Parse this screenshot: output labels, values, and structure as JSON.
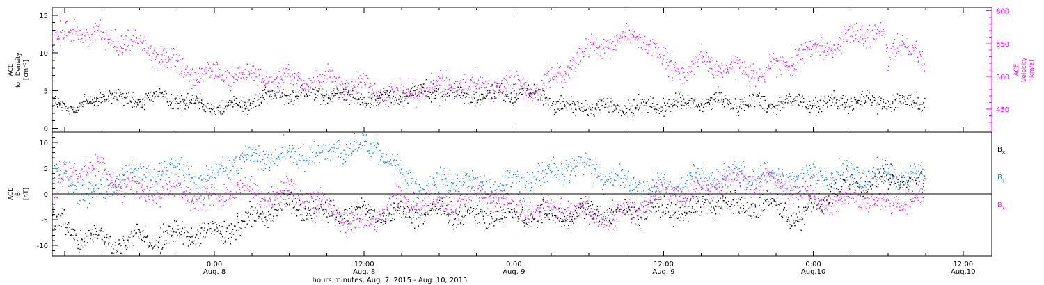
{
  "colors": {
    "black": "#000000",
    "blue": "#1e8ce6",
    "magenta": "#e626e6",
    "axis_magenta": "#ff00ff"
  },
  "xaxis": {
    "label": "hours:minutes, Aug.  7, 2015 - Aug. 10, 2015",
    "ticks": [
      {
        "hour": 24,
        "time": "0:00",
        "date": "Aug. 8"
      },
      {
        "hour": 36,
        "time": "12:00",
        "date": "Aug. 8"
      },
      {
        "hour": 48,
        "time": "0:00",
        "date": "Aug. 9"
      },
      {
        "hour": 60,
        "time": "12:00",
        "date": "Aug. 9"
      },
      {
        "hour": 72,
        "time": "0:00",
        "date": "Aug.10"
      },
      {
        "hour": 84,
        "time": "12:00",
        "date": "Aug.10"
      }
    ],
    "range_hours": [
      11,
      86.3
    ]
  },
  "chart_data": [
    {
      "type": "scatter",
      "ylabel_left": [
        "ACE",
        "Ion Density",
        "[cm⁻³]"
      ],
      "ylabel_right": [
        "ACE",
        "Velocity",
        "[km/s]"
      ],
      "left_ylim": [
        -0.5,
        16
      ],
      "left_ticks": [
        0,
        5,
        10,
        15
      ],
      "right_ylim": [
        415,
        605
      ],
      "right_ticks": [
        450,
        500,
        550,
        600
      ],
      "x_units": "hours since Aug. 7, 2015 00:00",
      "series": [
        {
          "name": "Ion Density",
          "axis": "left",
          "color": "black",
          "points": [
            [
              11,
              3.8
            ],
            [
              13,
              2.5
            ],
            [
              15,
              4.5
            ],
            [
              17,
              3.5
            ],
            [
              19,
              4.2
            ],
            [
              21,
              4.0
            ],
            [
              23,
              3.2
            ],
            [
              25,
              2.8
            ],
            [
              27,
              3.8
            ],
            [
              29,
              4.5
            ],
            [
              31,
              4.8
            ],
            [
              33,
              4.5
            ],
            [
              35,
              4.2
            ],
            [
              37,
              3.8
            ],
            [
              39,
              4.6
            ],
            [
              41,
              5.2
            ],
            [
              43,
              4.6
            ],
            [
              45,
              4.3
            ],
            [
              47,
              4.6
            ],
            [
              49,
              4.9
            ],
            [
              50.5,
              4.4
            ],
            [
              52,
              2.8
            ],
            [
              54,
              2.9
            ],
            [
              56,
              2.8
            ],
            [
              58,
              2.9
            ],
            [
              60,
              3.2
            ],
            [
              62,
              3.4
            ],
            [
              64,
              3.5
            ],
            [
              66,
              3.5
            ],
            [
              68,
              3.4
            ],
            [
              70,
              3.5
            ],
            [
              72,
              3.4
            ],
            [
              74,
              3.4
            ],
            [
              76,
              3.6
            ],
            [
              78,
              3.5
            ],
            [
              80,
              3.6
            ],
            [
              80.9,
              3.4
            ]
          ]
        },
        {
          "name": "Velocity",
          "axis": "right",
          "color": "magenta",
          "points": [
            [
              11,
              555
            ],
            [
              13,
              573
            ],
            [
              15,
              560
            ],
            [
              17,
              555
            ],
            [
              19,
              540
            ],
            [
              20.5,
              525
            ],
            [
              22,
              505
            ],
            [
              24,
              500
            ],
            [
              26,
              505
            ],
            [
              28,
              500
            ],
            [
              30,
              495
            ],
            [
              32,
              495
            ],
            [
              34,
              490
            ],
            [
              36,
              482
            ],
            [
              38,
              478
            ],
            [
              40,
              475
            ],
            [
              42,
              485
            ],
            [
              44,
              490
            ],
            [
              46,
              488
            ],
            [
              48,
              485
            ],
            [
              50,
              480
            ],
            [
              52,
              510
            ],
            [
              54,
              540
            ],
            [
              56,
              550
            ],
            [
              57,
              560
            ],
            [
              58,
              565
            ],
            [
              59,
              545
            ],
            [
              60,
              520
            ],
            [
              62,
              505
            ],
            [
              63,
              530
            ],
            [
              64,
              515
            ],
            [
              66,
              510
            ],
            [
              68,
              505
            ],
            [
              70,
              525
            ],
            [
              72,
              545
            ],
            [
              74,
              550
            ],
            [
              76,
              570
            ],
            [
              77.5,
              565
            ],
            [
              78,
              520
            ],
            [
              79,
              560
            ],
            [
              80,
              545
            ],
            [
              80.9,
              510
            ]
          ]
        }
      ]
    },
    {
      "type": "scatter",
      "ylabel_left": [
        "ACE",
        "B",
        "[nT]"
      ],
      "ylim": [
        -12,
        12
      ],
      "ticks": [
        -10,
        -5,
        0,
        5,
        10
      ],
      "zero_line": true,
      "x_units": "hours since Aug. 7, 2015 00:00",
      "legend": [
        {
          "name": "Bx",
          "base": "B",
          "sub": "x",
          "color": "black"
        },
        {
          "name": "By",
          "base": "B",
          "sub": "y",
          "color": "blue"
        },
        {
          "name": "Bz",
          "base": "B",
          "sub": "z",
          "color": "magenta"
        }
      ],
      "series": [
        {
          "name": "Bx",
          "color": "black",
          "points": [
            [
              11,
              -5
            ],
            [
              13,
              -7.5
            ],
            [
              16,
              -9
            ],
            [
              19,
              -8.5
            ],
            [
              22,
              -7.5
            ],
            [
              24,
              -7.8
            ],
            [
              27,
              -5
            ],
            [
              30,
              -2
            ],
            [
              33,
              -4
            ],
            [
              36,
              -3
            ],
            [
              38,
              -4
            ],
            [
              40,
              -3
            ],
            [
              43,
              -3.5
            ],
            [
              46,
              -4
            ],
            [
              48,
              -3.8
            ],
            [
              50,
              -4.2
            ],
            [
              53,
              -3.5
            ],
            [
              56,
              -3.8
            ],
            [
              59,
              -3
            ],
            [
              62,
              -2.8
            ],
            [
              64,
              -1.5
            ],
            [
              66,
              -2.5
            ],
            [
              68,
              -2.2
            ],
            [
              70,
              -3
            ],
            [
              71,
              -4.5
            ],
            [
              73,
              0
            ],
            [
              75,
              2
            ],
            [
              78,
              3
            ],
            [
              80,
              2.5
            ],
            [
              80.9,
              2
            ]
          ]
        },
        {
          "name": "By",
          "color": "blue",
          "points": [
            [
              11,
              4.8
            ],
            [
              13,
              1
            ],
            [
              15,
              0
            ],
            [
              17,
              5
            ],
            [
              19,
              4
            ],
            [
              21,
              5.5
            ],
            [
              23,
              2
            ],
            [
              25,
              5.5
            ],
            [
              27,
              7
            ],
            [
              30,
              7.5
            ],
            [
              33,
              8
            ],
            [
              35,
              9
            ],
            [
              37,
              9.5
            ],
            [
              39,
              4
            ],
            [
              41,
              1
            ],
            [
              43,
              3
            ],
            [
              45,
              2
            ],
            [
              47,
              1.5
            ],
            [
              49,
              3
            ],
            [
              51,
              4
            ],
            [
              53,
              6
            ],
            [
              55,
              4
            ],
            [
              57,
              2
            ],
            [
              59,
              1
            ],
            [
              61,
              2
            ],
            [
              63,
              3
            ],
            [
              65,
              3.5
            ],
            [
              67,
              4
            ],
            [
              69,
              3
            ],
            [
              71,
              3.5
            ],
            [
              73,
              3.5
            ],
            [
              75,
              4
            ],
            [
              78,
              3.8
            ],
            [
              80.9,
              3.5
            ]
          ]
        },
        {
          "name": "Bz",
          "color": "magenta",
          "points": [
            [
              11,
              -2
            ],
            [
              12,
              4
            ],
            [
              14,
              5.5
            ],
            [
              16,
              3
            ],
            [
              18,
              0.5
            ],
            [
              20,
              1
            ],
            [
              22,
              0.2
            ],
            [
              24,
              -1
            ],
            [
              26,
              1.5
            ],
            [
              28,
              -0.5
            ],
            [
              30,
              1
            ],
            [
              32,
              -1
            ],
            [
              34,
              -4
            ],
            [
              36,
              -6
            ],
            [
              38,
              -2
            ],
            [
              40,
              -1
            ],
            [
              42,
              -2
            ],
            [
              44,
              -1
            ],
            [
              46,
              0
            ],
            [
              48,
              -2
            ],
            [
              50,
              -3
            ],
            [
              52,
              -3
            ],
            [
              54,
              -4
            ],
            [
              56,
              -4.5
            ],
            [
              58,
              -2
            ],
            [
              60,
              1
            ],
            [
              62,
              -1
            ],
            [
              64,
              2
            ],
            [
              66,
              3
            ],
            [
              68,
              3
            ],
            [
              70,
              1
            ],
            [
              72,
              -1
            ],
            [
              74,
              -1.5
            ],
            [
              76,
              -0.5
            ],
            [
              78,
              -2
            ],
            [
              80.9,
              -1
            ]
          ]
        }
      ]
    }
  ]
}
